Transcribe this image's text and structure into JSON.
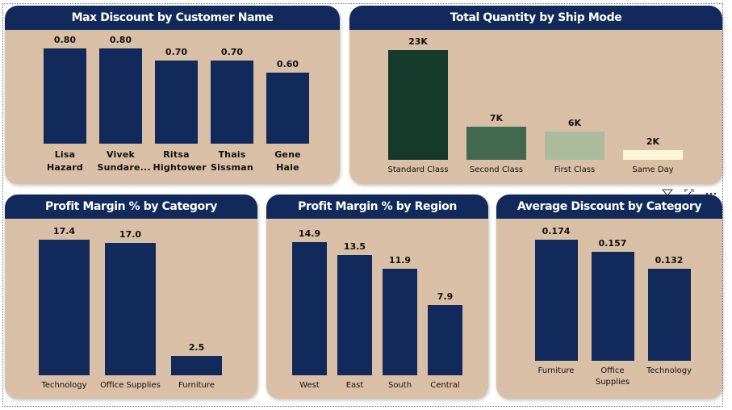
{
  "chart_data": [
    {
      "type": "bar",
      "title": "Max Discount by Customer Name",
      "categories": [
        "Lisa Hazard",
        "Vivek Sundare...",
        "Ritsa Hightower",
        "Thais Sissman",
        "Gene Hale"
      ],
      "values": [
        0.8,
        0.8,
        0.7,
        0.7,
        0.6
      ],
      "value_labels": [
        "0.80",
        "0.80",
        "0.70",
        "0.70",
        "0.60"
      ],
      "color": "#112a5b"
    },
    {
      "type": "bar",
      "title": "Total Quantity by Ship Mode",
      "categories": [
        "Standard Class",
        "Second Class",
        "First Class",
        "Same Day"
      ],
      "values": [
        23000,
        7000,
        6000,
        2000
      ],
      "value_labels": [
        "23K",
        "7K",
        "6K",
        "2K"
      ],
      "colors": [
        "#15392a",
        "#436a4f",
        "#abbb9c",
        "#fcf6d7"
      ]
    },
    {
      "type": "bar",
      "title": "Profit Margin % by Category",
      "categories": [
        "Technology",
        "Office Supplies",
        "Furniture"
      ],
      "values": [
        17.4,
        17.0,
        2.5
      ],
      "value_labels": [
        "17.4",
        "17.0",
        "2.5"
      ],
      "color": "#112a5b"
    },
    {
      "type": "bar",
      "title": "Profit Margin % by Region",
      "categories": [
        "West",
        "East",
        "South",
        "Central"
      ],
      "values": [
        14.9,
        13.5,
        11.9,
        7.9
      ],
      "color": "#112a5b"
    },
    {
      "type": "bar",
      "title": "Average Discount by Category",
      "categories": [
        "Furniture",
        "Office Supplies",
        "Technology"
      ],
      "values": [
        0.174,
        0.157,
        0.132
      ],
      "color": "#112a5b"
    }
  ]
}
